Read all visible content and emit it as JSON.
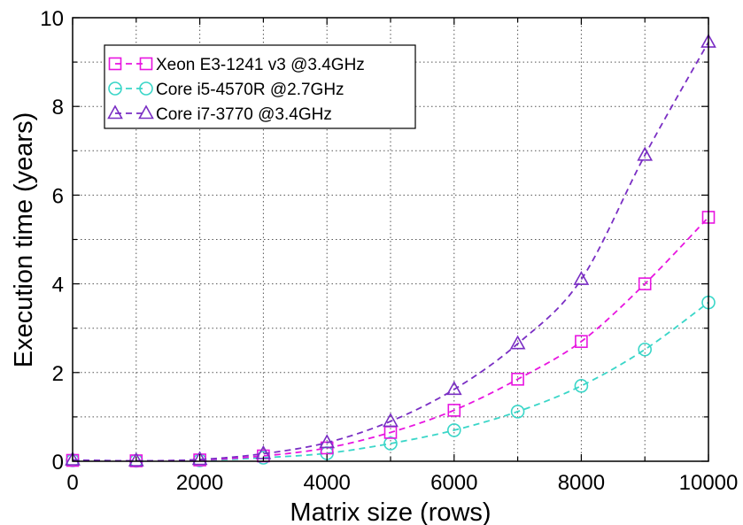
{
  "chart_data": {
    "type": "line",
    "title": "",
    "xlabel": "Matrix size (rows)",
    "ylabel": "Execution time (years)",
    "xlim": [
      0,
      10000
    ],
    "ylim": [
      0,
      10
    ],
    "x_ticks": [
      "0",
      "2000",
      "4000",
      "6000",
      "8000",
      "10000"
    ],
    "y_ticks": [
      "0",
      "2",
      "4",
      "6",
      "8",
      "10"
    ],
    "grid": true,
    "legend_position": "top-left",
    "x": [
      0,
      1000,
      2000,
      3000,
      4000,
      5000,
      6000,
      7000,
      8000,
      9000,
      10000
    ],
    "series": [
      {
        "name": "Xeon E3-1241 v3 @3.4GHz",
        "marker": "square",
        "color": "#e815e0",
        "values": [
          0.02,
          0.01,
          0.03,
          0.12,
          0.3,
          0.65,
          1.15,
          1.85,
          2.7,
          4.0,
          5.5
        ]
      },
      {
        "name": "Core i5-4570R @2.7GHz",
        "marker": "circle",
        "color": "#3ad6c8",
        "values": [
          0.02,
          0.01,
          0.02,
          0.08,
          0.18,
          0.4,
          0.7,
          1.12,
          1.7,
          2.52,
          3.58
        ]
      },
      {
        "name": "Core i7-3770 @3.4GHz",
        "marker": "triangle",
        "color": "#7a2ec4",
        "values": [
          0.03,
          0.01,
          0.04,
          0.17,
          0.42,
          0.9,
          1.62,
          2.65,
          4.1,
          6.9,
          9.45
        ]
      }
    ]
  }
}
